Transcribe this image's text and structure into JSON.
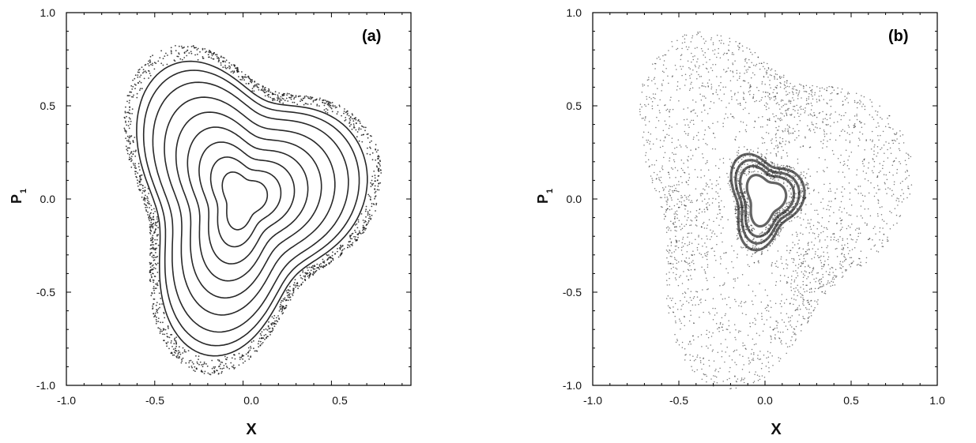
{
  "chart_data": [
    {
      "type": "scatter",
      "panel_label": "(a)",
      "xlabel": "X",
      "ylabel": "P",
      "ylabel_subscript": "1",
      "xlim": [
        -1.0,
        0.95
      ],
      "ylim": [
        -1.0,
        1.0
      ],
      "x_ticks": [
        "-1.0",
        "-0.5",
        "0.0",
        "0.5"
      ],
      "y_ticks": [
        "-1.0",
        "-0.5",
        "0.0",
        "0.5",
        "1.0"
      ],
      "grid": false,
      "color": "#111111",
      "description_of_marks": "Poincare section with nested regular invariant curves around the origin and a thin chaotic layer near the outer separatrix",
      "curve_family": "nested closed orbits",
      "curve_scale_factors": [
        0.18,
        0.28,
        0.38,
        0.48,
        0.58,
        0.68,
        0.78,
        0.86,
        0.92
      ],
      "chaotic_layer_scale": [
        0.93,
        1.03
      ]
    },
    {
      "type": "scatter",
      "panel_label": "(b)",
      "xlabel": "X",
      "ylabel": "P",
      "ylabel_subscript": "1",
      "xlim": [
        -1.0,
        1.0
      ],
      "ylim": [
        -1.0,
        1.0
      ],
      "x_ticks": [
        "-1.0",
        "-0.5",
        "0.0",
        "0.5",
        "1.0"
      ],
      "y_ticks": [
        "-1.0",
        "-0.5",
        "0.0",
        "0.5",
        "1.0"
      ],
      "grid": false,
      "color": "#222222",
      "description_of_marks": "Poincare section dominated by a chaotic sea with a small regular island around the origin",
      "curve_family": "island rings",
      "curve_scale_factors": [
        0.16,
        0.22,
        0.26,
        0.3
      ],
      "chaotic_layer_scale": [
        0.0,
        1.0
      ]
    }
  ]
}
